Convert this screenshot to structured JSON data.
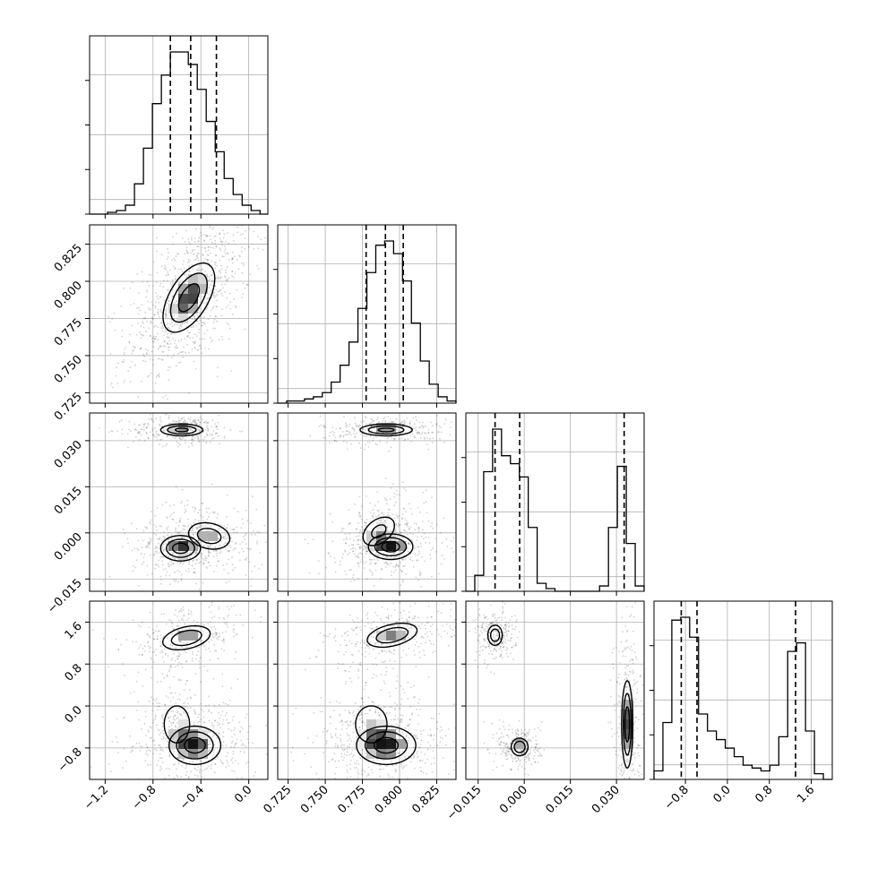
{
  "colors": {
    "ink": "#000000",
    "grid": "#b0b0b0",
    "background": "#ffffff"
  },
  "chart_data": {
    "type": "corner",
    "parameters": 4,
    "grid": true,
    "tick_labels": {
      "p0_x": [
        "−1.2",
        "−0.8",
        "−0.4",
        "0.0"
      ],
      "p1_x": [
        "0.725",
        "0.750",
        "0.775",
        "0.800",
        "0.825"
      ],
      "p2_x": [
        "−0.015",
        "0.000",
        "0.015",
        "0.030"
      ],
      "p3_x": [
        "−0.8",
        "0.0",
        "0.8",
        "1.6"
      ],
      "p1_y": [
        "0.725",
        "0.750",
        "0.775",
        "0.800",
        "0.825"
      ],
      "p2_y": [
        "−0.015",
        "0.000",
        "0.015",
        "0.030"
      ],
      "p3_y": [
        "−0.8",
        "0.0",
        "0.8",
        "1.6"
      ]
    },
    "ranges": {
      "p0": [
        -1.33,
        0.16
      ],
      "p1": [
        0.718,
        0.838
      ],
      "p2": [
        -0.019,
        0.039
      ],
      "p3": [
        -1.4,
        2.0
      ]
    },
    "quantiles": {
      "p0": [
        -0.655,
        -0.485,
        -0.27
      ],
      "p1": [
        0.7775,
        0.7905,
        0.8025
      ],
      "p2": [
        -0.0095,
        -0.0015,
        0.0325
      ],
      "p3": [
        -0.88,
        -0.58,
        1.3
      ]
    },
    "histograms": [
      {
        "param": "p0",
        "edges": [
          -1.33,
          -1.255,
          -1.18,
          -1.105,
          -1.03,
          -0.955,
          -0.88,
          -0.805,
          -0.73,
          -0.655,
          -0.58,
          -0.505,
          -0.43,
          -0.355,
          -0.28,
          -0.205,
          -0.13,
          -0.055,
          0.02,
          0.095,
          0.16
        ],
        "counts": [
          0,
          0,
          1,
          2,
          5,
          17,
          37,
          62,
          78,
          91,
          91,
          84,
          70,
          52,
          35,
          20,
          11,
          5,
          2,
          0
        ]
      },
      {
        "param": "p1",
        "edges": [
          0.718,
          0.724,
          0.73,
          0.736,
          0.742,
          0.748,
          0.754,
          0.76,
          0.766,
          0.772,
          0.778,
          0.784,
          0.79,
          0.796,
          0.802,
          0.808,
          0.814,
          0.82,
          0.826,
          0.832,
          0.838
        ],
        "counts": [
          0,
          1,
          1,
          2,
          3,
          5,
          10,
          18,
          29,
          45,
          62,
          75,
          77,
          71,
          58,
          38,
          20,
          9,
          3,
          1
        ]
      },
      {
        "param": "p2",
        "edges": [
          -0.019,
          -0.0161,
          -0.0132,
          -0.0103,
          -0.0074,
          -0.0045,
          -0.0016,
          0.0013,
          0.0042,
          0.0071,
          0.01,
          0.0129,
          0.0158,
          0.0187,
          0.0216,
          0.0245,
          0.0274,
          0.0303,
          0.0332,
          0.0361,
          0.039
        ],
        "counts": [
          0,
          6,
          45,
          61,
          51,
          48,
          43,
          24,
          3,
          1,
          0,
          0,
          0,
          0,
          0,
          2,
          24,
          47,
          18,
          2
        ]
      },
      {
        "param": "p3",
        "edges": [
          -1.4,
          -1.23,
          -1.06,
          -0.89,
          -0.72,
          -0.55,
          -0.38,
          -0.21,
          -0.04,
          0.13,
          0.3,
          0.47,
          0.64,
          0.81,
          0.98,
          1.15,
          1.32,
          1.49,
          1.66,
          1.83,
          2.0
        ],
        "counts": [
          3,
          20,
          56,
          57,
          50,
          23,
          17,
          14,
          11,
          8,
          5,
          4,
          3,
          5,
          15,
          45,
          48,
          17,
          2,
          0
        ]
      }
    ],
    "modes_2d": [
      {
        "x": "p0",
        "y": "p1",
        "peaks": [
          {
            "cx": -0.5,
            "cy": 0.789,
            "sx": 0.13,
            "sy": 0.014,
            "rho": 0.55,
            "w": 1
          }
        ]
      },
      {
        "x": "p0",
        "y": "p2",
        "peaks": [
          {
            "cx": -0.56,
            "cy": 0.0335,
            "sx": 0.11,
            "sy": 0.0012,
            "rho": 0.0,
            "w": 0.9
          },
          {
            "cx": -0.57,
            "cy": -0.005,
            "sx": 0.1,
            "sy": 0.0025,
            "rho": 0.0,
            "w": 1
          },
          {
            "cx": -0.33,
            "cy": -0.001,
            "sx": 0.12,
            "sy": 0.003,
            "rho": -0.2,
            "w": 0.7
          }
        ]
      },
      {
        "x": "p1",
        "y": "p2",
        "peaks": [
          {
            "cx": 0.791,
            "cy": 0.0335,
            "sx": 0.011,
            "sy": 0.0012,
            "rho": 0.0,
            "w": 0.9
          },
          {
            "cx": 0.794,
            "cy": -0.0045,
            "sx": 0.009,
            "sy": 0.0025,
            "rho": 0.0,
            "w": 1
          },
          {
            "cx": 0.786,
            "cy": 0.0005,
            "sx": 0.008,
            "sy": 0.0035,
            "rho": 0.4,
            "w": 0.6
          }
        ]
      },
      {
        "x": "p0",
        "y": "p3",
        "peaks": [
          {
            "cx": -0.52,
            "cy": 1.3,
            "sx": 0.13,
            "sy": 0.15,
            "rho": 0.35,
            "w": 0.8
          },
          {
            "cx": -0.45,
            "cy": -0.75,
            "sx": 0.13,
            "sy": 0.22,
            "rho": 0.0,
            "w": 1
          },
          {
            "cx": -0.6,
            "cy": -0.35,
            "sx": 0.09,
            "sy": 0.3,
            "rho": 0.0,
            "w": 0.5
          }
        ]
      },
      {
        "x": "p1",
        "y": "p3",
        "peaks": [
          {
            "cx": 0.795,
            "cy": 1.35,
            "sx": 0.011,
            "sy": 0.15,
            "rho": 0.4,
            "w": 0.8
          },
          {
            "cx": 0.791,
            "cy": -0.75,
            "sx": 0.012,
            "sy": 0.22,
            "rho": 0.0,
            "w": 1
          },
          {
            "cx": 0.781,
            "cy": -0.35,
            "sx": 0.009,
            "sy": 0.3,
            "rho": 0.0,
            "w": 0.5
          }
        ]
      },
      {
        "x": "p2",
        "y": "p3",
        "peaks": [
          {
            "cx": -0.0095,
            "cy": 1.35,
            "sx": 0.0016,
            "sy": 0.13,
            "rho": 0.0,
            "w": 0.75
          },
          {
            "cx": -0.0015,
            "cy": -0.78,
            "sx": 0.0018,
            "sy": 0.11,
            "rho": 0.0,
            "w": 0.8
          },
          {
            "cx": 0.0335,
            "cy": -0.35,
            "sx": 0.0011,
            "sy": 0.5,
            "rho": 0.0,
            "w": 1
          }
        ]
      }
    ]
  }
}
